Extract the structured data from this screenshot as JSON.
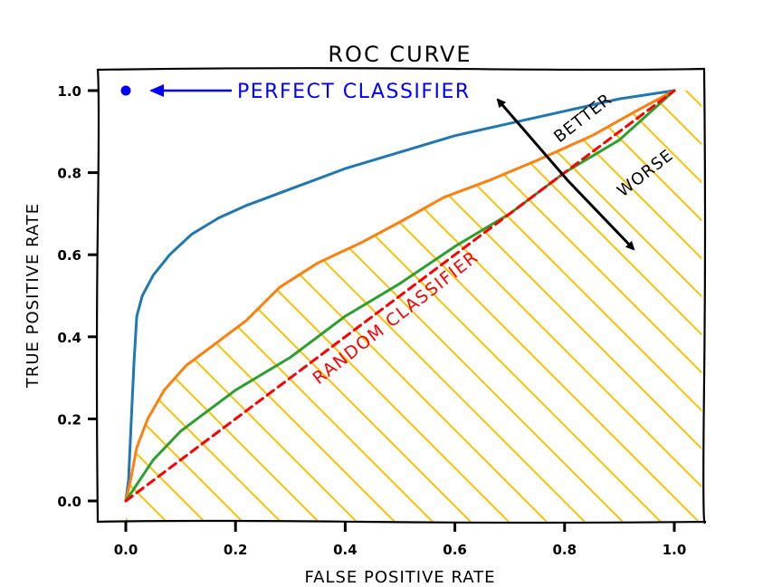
{
  "chart_data": {
    "type": "line",
    "title": "ROC CURVE",
    "xlabel": "FALSE POSITIVE RATE",
    "ylabel": "TRUE POSITIVE RATE",
    "xlim": [
      -0.05,
      1.05
    ],
    "ylim": [
      -0.05,
      1.05
    ],
    "xticks": [
      "0.0",
      "0.2",
      "0.4",
      "0.6",
      "0.8",
      "1.0"
    ],
    "yticks": [
      "0.0",
      "0.2",
      "0.4",
      "0.6",
      "0.8",
      "1.0"
    ],
    "grid": false,
    "series": [
      {
        "color": "#1f77b4",
        "style": "solid",
        "x": [
          0,
          0.005,
          0.01,
          0.015,
          0.02,
          0.03,
          0.05,
          0.08,
          0.12,
          0.17,
          0.22,
          0.3,
          0.4,
          0.5,
          0.6,
          0.7,
          0.8,
          0.9,
          1.0
        ],
        "y": [
          0,
          0.05,
          0.2,
          0.34,
          0.45,
          0.5,
          0.55,
          0.6,
          0.65,
          0.69,
          0.72,
          0.76,
          0.81,
          0.85,
          0.89,
          0.92,
          0.95,
          0.98,
          1.0
        ]
      },
      {
        "color": "#ff7f0e",
        "style": "solid",
        "x": [
          0,
          0.01,
          0.02,
          0.04,
          0.07,
          0.11,
          0.16,
          0.22,
          0.28,
          0.35,
          0.43,
          0.5,
          0.58,
          0.66,
          0.75,
          0.85,
          0.93,
          1.0
        ],
        "y": [
          0,
          0.06,
          0.13,
          0.2,
          0.27,
          0.33,
          0.38,
          0.44,
          0.52,
          0.58,
          0.63,
          0.68,
          0.74,
          0.78,
          0.83,
          0.89,
          0.95,
          1.0
        ]
      },
      {
        "color": "#2ca02c",
        "style": "solid",
        "x": [
          0,
          0.05,
          0.1,
          0.15,
          0.2,
          0.3,
          0.4,
          0.5,
          0.6,
          0.7,
          0.8,
          0.9,
          1.0
        ],
        "y": [
          0,
          0.1,
          0.17,
          0.22,
          0.27,
          0.35,
          0.45,
          0.53,
          0.62,
          0.7,
          0.8,
          0.88,
          1.0
        ]
      },
      {
        "color": "#ff0000",
        "style": "dashed",
        "x": [
          0,
          1.0
        ],
        "y": [
          0,
          1.0
        ]
      }
    ],
    "perfect_point": {
      "x": 0.0,
      "y": 1.0,
      "color": "#0000ff"
    },
    "hatch_color": "#ffbf00",
    "annotations": [
      {
        "text": "PERFECT CLASSIFIER",
        "color": "#0000ff",
        "arrow_to": [
          0.04,
          1.0
        ]
      },
      {
        "text": "RANDOM CLASSIFIER",
        "color": "#ff0000"
      },
      {
        "text": "BETTER",
        "color": "#000000"
      },
      {
        "text": "WORSE",
        "color": "#000000"
      }
    ]
  }
}
